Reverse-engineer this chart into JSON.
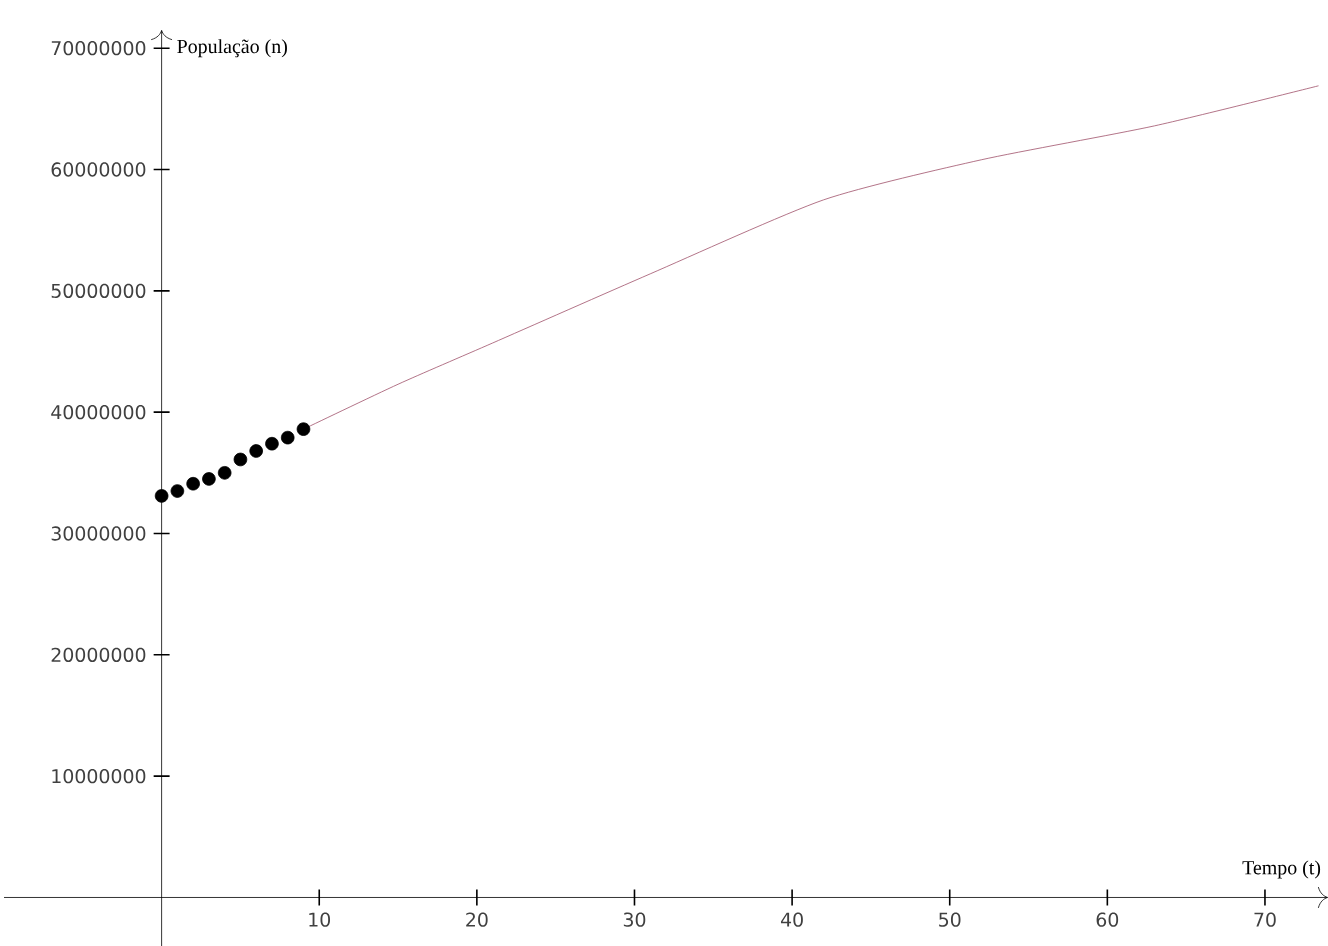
{
  "chart_data": {
    "type": "line",
    "xlabel": "Tempo (t)",
    "ylabel": "População (n)",
    "xlim": [
      -10,
      74
    ],
    "ylim": [
      -4000000,
      71500000
    ],
    "xticks": [
      10,
      20,
      30,
      40,
      50,
      60,
      70
    ],
    "yticks": [
      10000000,
      20000000,
      30000000,
      40000000,
      50000000,
      60000000,
      70000000
    ],
    "grid": false,
    "series": [
      {
        "color": "#a0506a",
        "marker": "none",
        "x": [
          9,
          15,
          21,
          31,
          42,
          52,
          63,
          73.4
        ],
        "values": [
          38600000,
          42300000,
          45700000,
          51400000,
          57500000,
          60800000,
          63600000,
          66900000
        ]
      },
      {
        "type": "scatter",
        "color": "#000000",
        "marker": "circle",
        "x": [
          0,
          1,
          2,
          3,
          4,
          5,
          6,
          7,
          8,
          9
        ],
        "values": [
          33100000,
          33500000,
          34100000,
          34500000,
          35000000,
          36100000,
          36800000,
          37400000,
          37900000,
          38600000
        ]
      }
    ]
  }
}
